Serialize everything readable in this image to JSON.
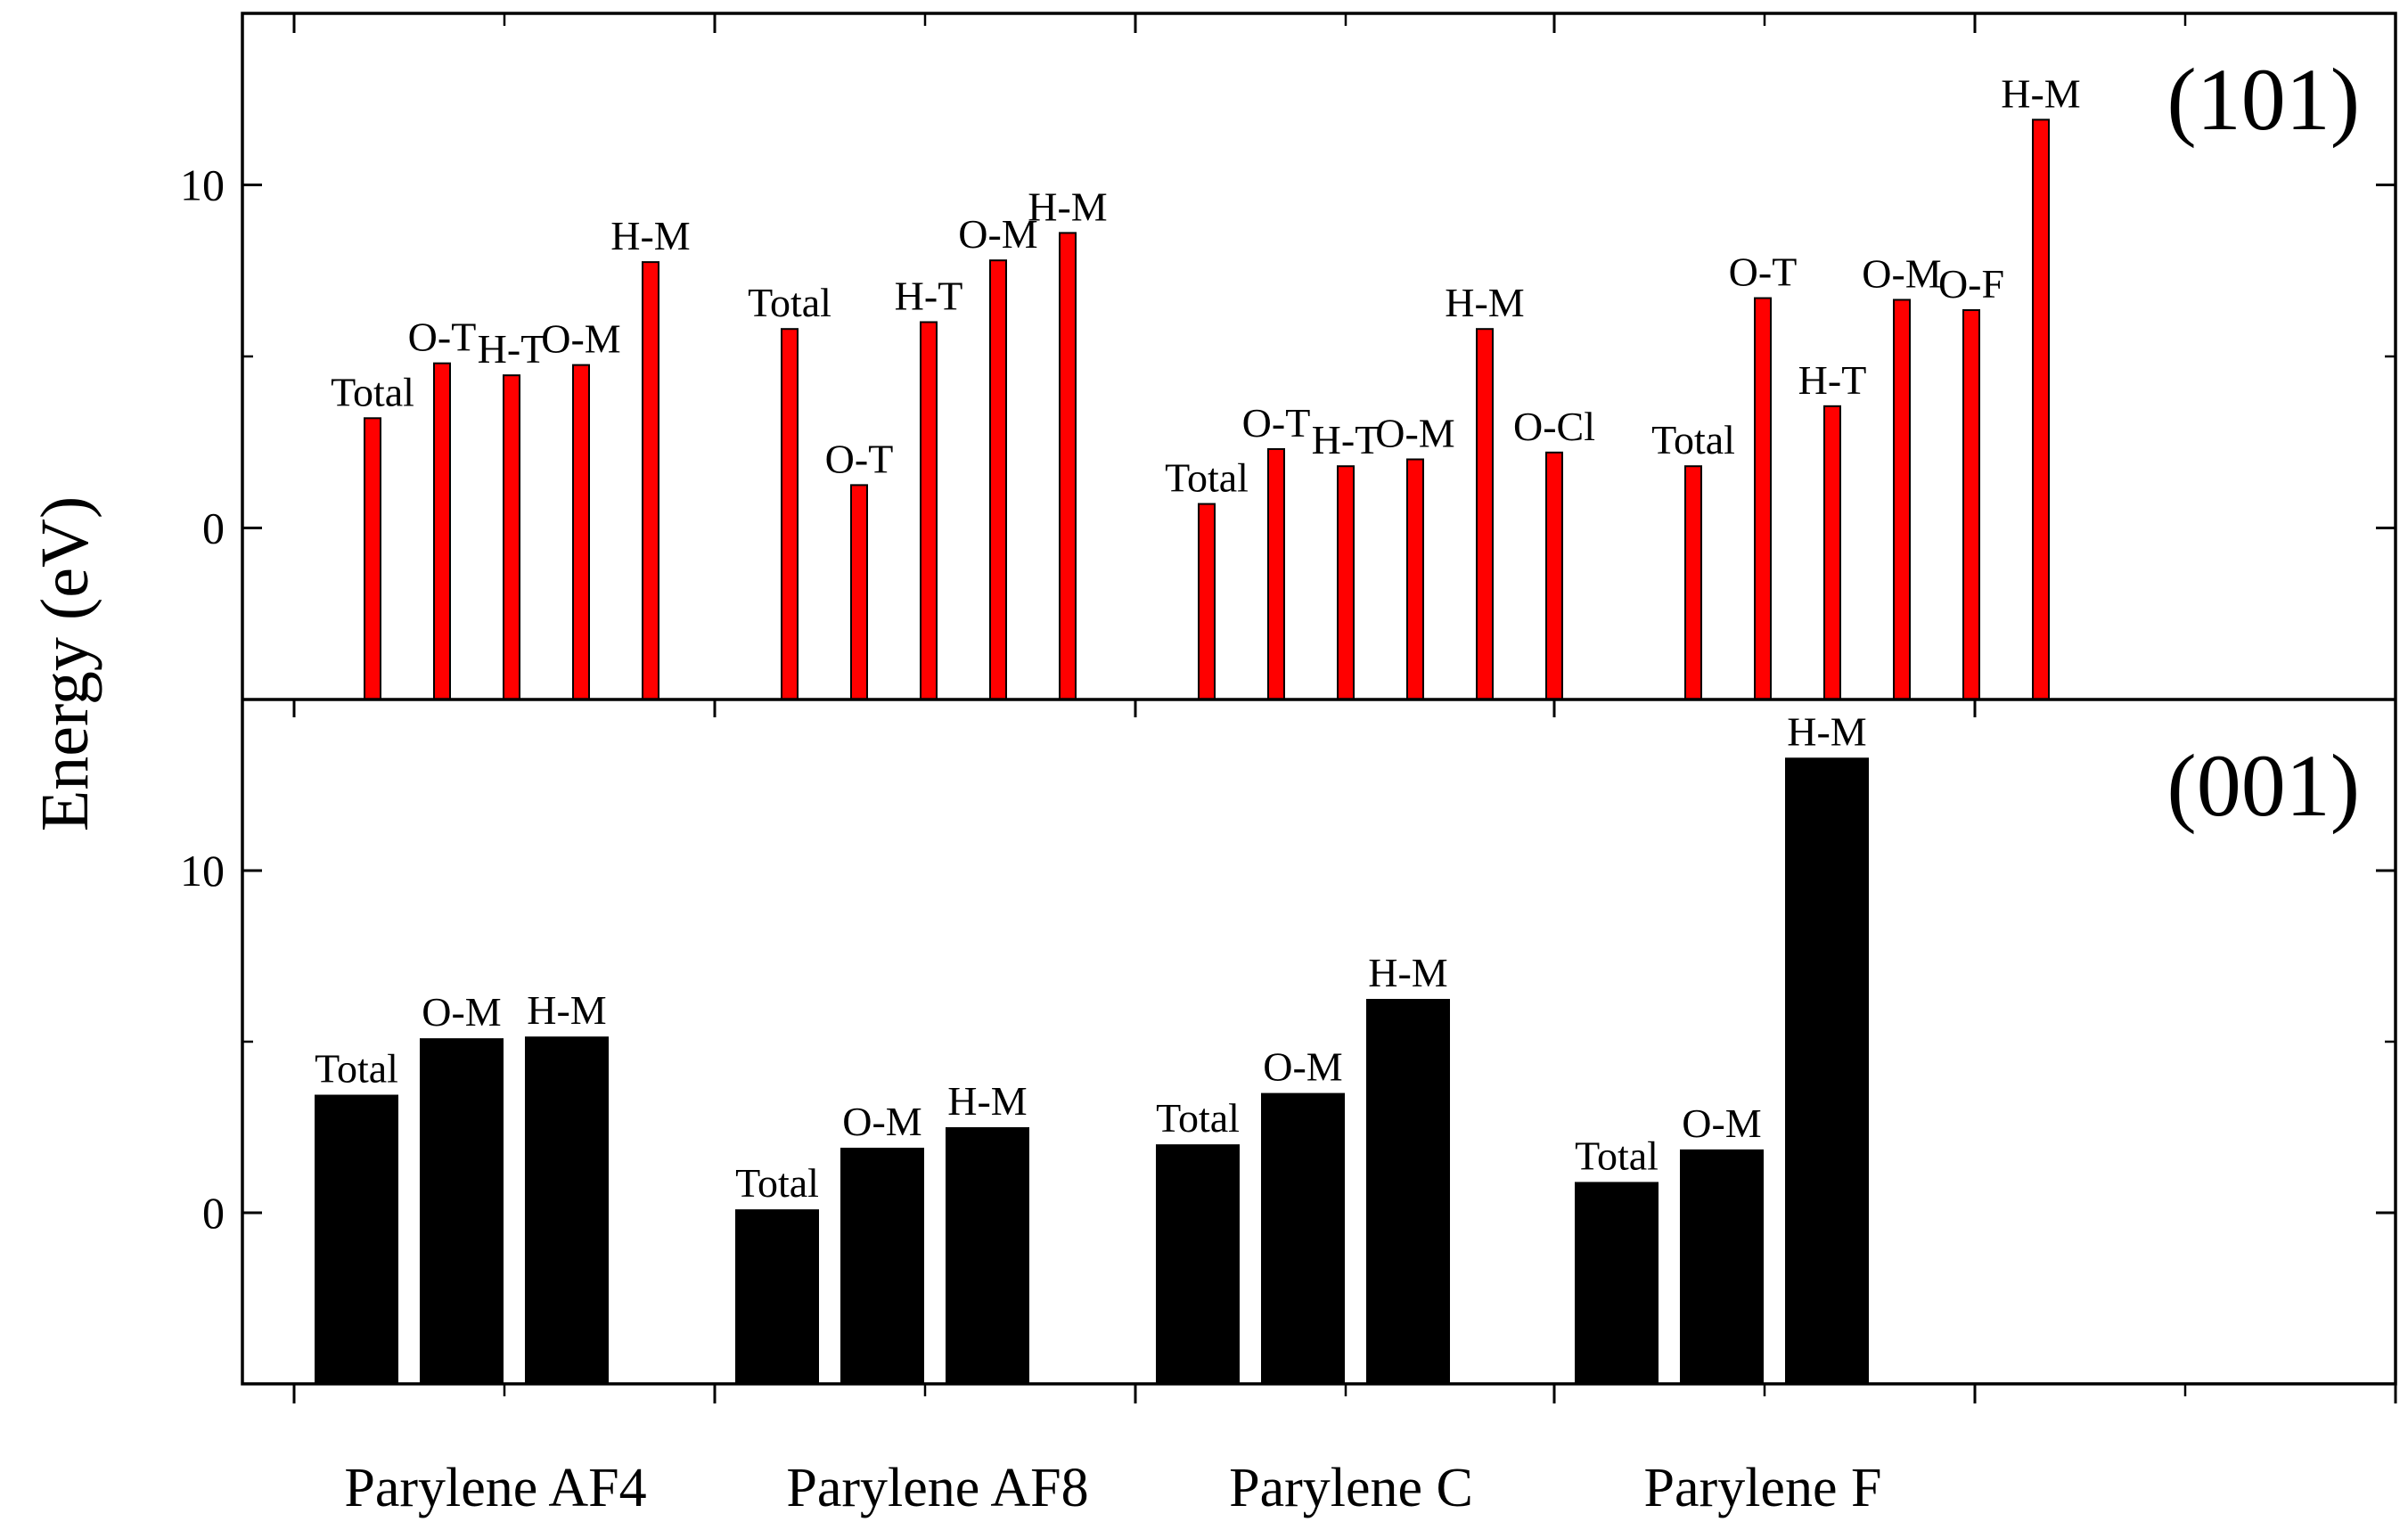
{
  "chart_data": {
    "type": "bar",
    "ylabel": "Energy (eV)",
    "categories": [
      "Parylene AF4",
      "Parylene AF8",
      "Parylene C",
      "Parylene F"
    ],
    "colors": {
      "panel_101": "#ff0000",
      "panel_001": "#000000",
      "axis": "#000000"
    },
    "panels": [
      {
        "tag": "(101)",
        "ylim": [
          -5,
          15
        ],
        "yticks": [
          {
            "v": 0,
            "label": "0"
          },
          {
            "v": 10,
            "label": "10"
          }
        ],
        "groups": [
          {
            "category": "Parylene AF4",
            "bars": [
              {
                "label": "Total",
                "value": 3.2
              },
              {
                "label": "O-T",
                "value": 4.8
              },
              {
                "label": "H-T",
                "value": 4.45
              },
              {
                "label": "O-M",
                "value": 4.75
              },
              {
                "label": "H-M",
                "value": 7.75
              }
            ]
          },
          {
            "category": "Parylene AF8",
            "bars": [
              {
                "label": "Total",
                "value": 5.8
              },
              {
                "label": "O-T",
                "value": 1.25
              },
              {
                "label": "H-T",
                "value": 6.0
              },
              {
                "label": "O-M",
                "value": 7.8
              },
              {
                "label": "H-M",
                "value": 8.6
              }
            ]
          },
          {
            "category": "Parylene C",
            "bars": [
              {
                "label": "Total",
                "value": 0.7
              },
              {
                "label": "O-T",
                "value": 2.3
              },
              {
                "label": "H-T",
                "value": 1.8
              },
              {
                "label": "O-M",
                "value": 2.0
              },
              {
                "label": "H-M",
                "value": 5.8
              },
              {
                "label": "O-Cl",
                "value": 2.2
              }
            ]
          },
          {
            "category": "Parylene F",
            "bars": [
              {
                "label": "Total",
                "value": 1.8
              },
              {
                "label": "O-T",
                "value": 6.7
              },
              {
                "label": "H-T",
                "value": 3.55
              },
              {
                "label": "O-M",
                "value": 6.65
              },
              {
                "label": "O-F",
                "value": 6.35
              },
              {
                "label": "H-M",
                "value": 11.9
              }
            ]
          }
        ]
      },
      {
        "tag": "(001)",
        "ylim": [
          -5,
          15
        ],
        "yticks": [
          {
            "v": 0,
            "label": "0"
          },
          {
            "v": 10,
            "label": "10"
          }
        ],
        "groups": [
          {
            "category": "Parylene AF4",
            "bars": [
              {
                "label": "Total",
                "value": 3.45
              },
              {
                "label": "O-M",
                "value": 5.1
              },
              {
                "label": "H-M",
                "value": 5.15
              }
            ]
          },
          {
            "category": "Parylene AF8",
            "bars": [
              {
                "label": "Total",
                "value": 0.1
              },
              {
                "label": "O-M",
                "value": 1.9
              },
              {
                "label": "H-M",
                "value": 2.5
              }
            ]
          },
          {
            "category": "Parylene C",
            "bars": [
              {
                "label": "Total",
                "value": 2.0
              },
              {
                "label": "O-M",
                "value": 3.5
              },
              {
                "label": "H-M",
                "value": 6.25
              }
            ]
          },
          {
            "category": "Parylene F",
            "bars": [
              {
                "label": "Total",
                "value": 0.9
              },
              {
                "label": "O-M",
                "value": 1.85
              },
              {
                "label": "H-M",
                "value": 13.3
              }
            ]
          }
        ]
      }
    ]
  }
}
